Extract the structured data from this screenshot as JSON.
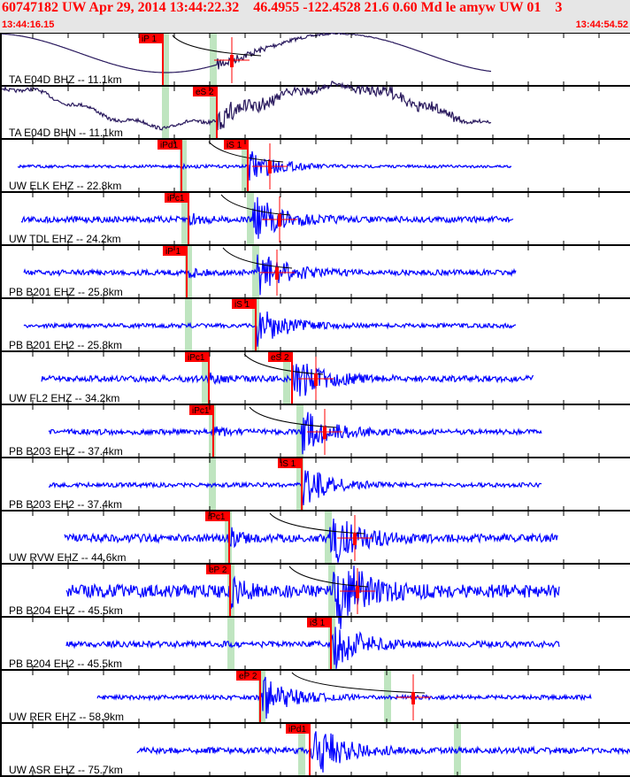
{
  "header": {
    "title": "60747182 UW Apr 29, 2014 13:44:22.32    46.4955 -122.4528 21.6 0.60 Md le amyw UW 01    3",
    "start_time": "13:44:16.15",
    "end_time": "13:44:54.52"
  },
  "colors": {
    "header_bg": "#e6e6e6",
    "header_text": "#ff0000",
    "trace_broadband": "#2a1a5e",
    "trace_short": "#0000ff",
    "pick": "#ff0000",
    "window": "#bfe5c0"
  },
  "traces": [
    {
      "label": "TA E04D BHZ -- 11.1km",
      "picks": [
        "iP 1"
      ]
    },
    {
      "label": "TA E04D BHN -- 11.1km",
      "picks": [
        "eS 2"
      ]
    },
    {
      "label": "UW ELK EHZ -- 22.8km",
      "picks": [
        "iPd1",
        "iS 1"
      ]
    },
    {
      "label": "UW TDL EHZ -- 24.2km",
      "picks": [
        "iPc1"
      ]
    },
    {
      "label": "PB B201 EHZ -- 25.8km",
      "picks": [
        "iP 1"
      ]
    },
    {
      "label": "PB B201 EH2 -- 25.8km",
      "picks": [
        "iS 1"
      ]
    },
    {
      "label": "UW FL2 EHZ -- 34.2km",
      "picks": [
        "iPc1",
        "eS 2"
      ]
    },
    {
      "label": "PB B203 EHZ -- 37.4km",
      "picks": [
        "iPc1"
      ]
    },
    {
      "label": "PB B203 EH2 -- 37.4km",
      "picks": [
        "iS 1"
      ]
    },
    {
      "label": "UW RVW EHZ -- 44.6km",
      "picks": [
        "iPc1"
      ]
    },
    {
      "label": "PB B204 EHZ -- 45.5km",
      "picks": [
        "eP 2"
      ]
    },
    {
      "label": "PB B204 EH2 -- 45.5km",
      "picks": [
        "iS 1"
      ]
    },
    {
      "label": "UW RER EHZ -- 58.9km",
      "picks": [
        "eP 2"
      ]
    },
    {
      "label": "UW ASR EHZ -- 75.7km",
      "picks": [
        "iPd1"
      ]
    }
  ]
}
